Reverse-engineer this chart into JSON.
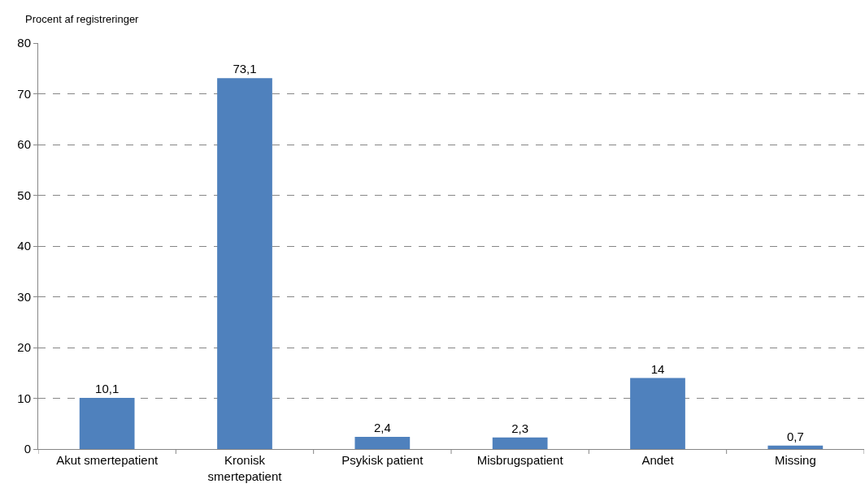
{
  "chart_data": {
    "type": "bar",
    "ylabel": "Procent af registreringer",
    "categories": [
      "Akut smertepatient",
      "Kronisk smertepatient",
      "Psykisk patient",
      "Misbrugspatient",
      "Andet",
      "Missing"
    ],
    "values": [
      10.1,
      73.1,
      2.4,
      2.3,
      14,
      0.7
    ],
    "value_labels": [
      "10,1",
      "73,1",
      "2,4",
      "2,3",
      "14",
      "0,7"
    ],
    "color": "#4f81bd",
    "ylim": [
      0,
      80
    ],
    "yticks": [
      0,
      10,
      20,
      30,
      40,
      50,
      60,
      70,
      80
    ],
    "grid": "y",
    "legend": false
  }
}
